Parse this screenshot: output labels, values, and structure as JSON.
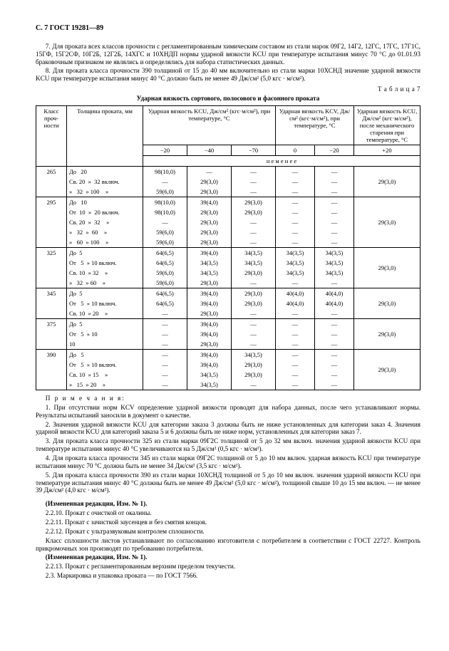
{
  "header": "С. 7 ГОСТ 19281—89",
  "p7": "7. Для проката всех классов прочности с регламентированным химическим составом из стали марок 09Г2, 14Г2, 12ГС, 17ГС, 17Г1С, 15ГФ, 15Г2СФ, 10Г2Б, 12Г2Б, 14ХГС и 10ХНДП нормы ударной вязкости KCU при температуре испытания минус 70 °С до 01.01.93 браковочным признаком не являлись и определялись для набора статистических данных.",
  "p8": "8. Для проката класса прочности 390 толщиной от 15 до 40 мм включительно из стали марки 10ХСНД значение ударной вязкости KCU при температуре испытания минус 40 °С должно быть не менее 49 Дж/см² (5,0 кгс · м/см²).",
  "table_label": "Т а б л и ц а  7",
  "table_title": "Ударная вязкость сортового, полосового и фасонного проката",
  "thead": {
    "c1": "Класс проч-ности",
    "c2": "Толщина проката, мм",
    "g1": "Ударная вязкость KCU, Дж/см² (кгс·м/см²), при температуре, °С",
    "g2": "Ударная вязкость KCV, Дж/см² (кгс·м/см²), при температуре, °С",
    "g3": "Ударная вязкость KCU, Дж/см² (кгс·м/см²), после механического старения при температуре, °С",
    "t_m20": "−20",
    "t_m40": "−40",
    "t_m70": "−70",
    "t_0": "0",
    "t_m20b": "−20",
    "t_p20": "+20",
    "nm": "н е   м е н е е"
  },
  "rows": [
    {
      "g": "265",
      "th": [
        "До   20",
        "Св. 20  »  32 включ.",
        "»   32  » 100    »"
      ],
      "c": [
        [
          "98(10,0)",
          "—",
          "—",
          "—",
          "—",
          ""
        ],
        [
          "—",
          "29(3,0)",
          "—",
          "—",
          "—",
          "29(3,0)"
        ],
        [
          "59(6,0)",
          "29(3,0)",
          "—",
          "—",
          "—",
          ""
        ]
      ]
    },
    {
      "g": "295",
      "th": [
        "До   10",
        "От  10  »  20 включ.",
        "Св. 20  »  32    »",
        "»   32  »  60    »",
        "»   60  » 100    »"
      ],
      "c": [
        [
          "98(10,0)",
          "39(4,0)",
          "29(3,0)",
          "—",
          "—",
          ""
        ],
        [
          "98(10,0)",
          "29(3,0)",
          "29(3,0)",
          "—",
          "—",
          ""
        ],
        [
          "—",
          "29(3,0)",
          "—",
          "—",
          "—",
          "29(3,0)"
        ],
        [
          "59(6,0)",
          "29(3,0)",
          "—",
          "—",
          "—",
          ""
        ],
        [
          "59(6,0)",
          "29(3,0)",
          "—",
          "—",
          "—",
          ""
        ]
      ]
    },
    {
      "g": "325",
      "th": [
        "До  5",
        "От   5  » 10 включ.",
        "Св. 10  » 32    »",
        "»   32  » 60    »"
      ],
      "c": [
        [
          "64(6,5)",
          "39(4,0)",
          "34(3,5)",
          "34(3,5)",
          "34(3,5)",
          ""
        ],
        [
          "64(6,5)",
          "34(3,5)",
          "34(3,5)",
          "34(3,5)",
          "34(3,5)",
          ""
        ],
        [
          "59(6,0)",
          "34(3,5)",
          "29(3,0)",
          "34(3,5)",
          "34(3,5)",
          "29(3,0)"
        ],
        [
          "59(6,0)",
          "29(3,0)",
          "—",
          "—",
          "—",
          ""
        ]
      ]
    },
    {
      "g": "345",
      "th": [
        "До  5",
        "От   5  » 10 включ.",
        "Св. 10  » 20    »"
      ],
      "c": [
        [
          "64(6,5)",
          "39(4,0)",
          "29(3,0)",
          "40(4,0)",
          "40(4,0)",
          ""
        ],
        [
          "64(6,5)",
          "39(4,0)",
          "29(3,0)",
          "40(4,0)",
          "40(4,0)",
          "29(3,0)"
        ],
        [
          "—",
          "29(3,0)",
          "—",
          "—",
          "—",
          ""
        ]
      ]
    },
    {
      "g": "375",
      "th": [
        "До  5",
        "От   5  » 10",
        "10"
      ],
      "c": [
        [
          "—",
          "39(4,0)",
          "—",
          "—",
          "—",
          ""
        ],
        [
          "—",
          "39(4,0)",
          "—",
          "—",
          "—",
          "29(3,0)"
        ],
        [
          "—",
          "29(3,0)",
          "—",
          "—",
          "—",
          ""
        ]
      ]
    },
    {
      "g": "390",
      "th": [
        "До   5",
        "От   5  » 10 включ.",
        "Св. 10  » 15    »",
        "»   15  » 20    »"
      ],
      "c": [
        [
          "—",
          "39(4,0)",
          "34(3,5)",
          "—",
          "—",
          ""
        ],
        [
          "—",
          "39(4,0)",
          "29(3,0)",
          "—",
          "—",
          "29(3,0)"
        ],
        [
          "—",
          "34(3,5)",
          "29(3,0)",
          "—",
          "—",
          ""
        ],
        [
          "—",
          "34(3,5)",
          "—",
          "—",
          "—",
          ""
        ]
      ]
    }
  ],
  "notes_title": "П р и м е ч а н и я:",
  "notes": [
    "1. При отсутствии норм KCV определение ударной вязкости проводят для набора данных, после чего устанавливают нормы. Результаты испытаний заносили в документ о качестве.",
    "2. Значения ударной вязкости KCU для категории заказа 3 должны быть не ниже установленных для категории заказ 4. Значения ударной вязкости KCU для категорий заказа 5 и 6 должны быть не ниже норм, установленных для категории заказ 7.",
    "3. Для проката класса прочности 325 из стали марки 09Г2С толщиной от 5 до 32 мм включ. значения ударной вязкости KCU при температуре испытания минус 40 °С увеличиваются на 5 Дж/см² (0,5 кгс · м/см²).",
    "4. Для проката класса прочности 345 из стали марки 09Г2С толщиной от 5 до 10 мм включ. ударная вязкость KCU при температуре испытания минус 70 °С должна быть не менее 34 Дж/см² (3,5 кгс · м/см²).",
    "5. Для проката класса прочности 390 из стали марки 10ХСНД толщиной от 5 до 10 мм включ. значения ударной вязкости KCU при температуре испытания минус 40 °С должны быть не менее 49 Дж/см² (5,0 кгс · м/см²), толщиной свыше 10 до 15 мм включ. — не менее 39 Дж/см² (4,0 кгс · м/см²)."
  ],
  "izm1": "(Измененная редакция, Изм. № 1).",
  "s2210": "2.2.10.  Прокат с очисткой от окалины.",
  "s2211": "2.2.11.  Прокат с зачисткой заусенцев и без смятия концов.",
  "s2212": "2.2.12.  Прокат с ультразвуковым контролем сплошности.",
  "pclass": "Класс сплошности листов устанавливают по согласованию изготовителя с потребителем в соответствии с ГОСТ 22727. Контроль прикромочных зон производят по требованию потребителя.",
  "izm2": "(Измененная редакция, Изм. № 1).",
  "s2213": "2.2.13.   Прокат с регламентированным верхним пределом текучести.",
  "s23": "2.3.  Маркировка и упаковка проката — по ГОСТ 7566."
}
